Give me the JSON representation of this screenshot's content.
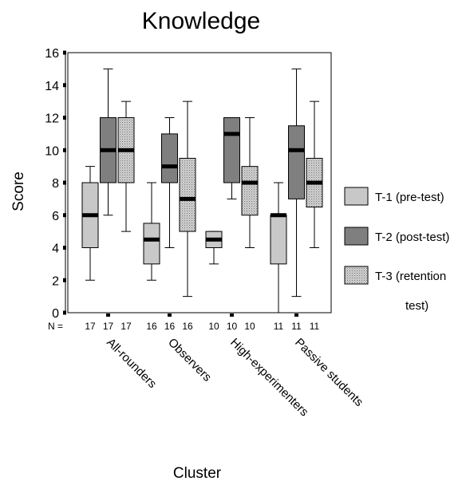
{
  "chart_data": {
    "type": "boxplot",
    "title": "Knowledge",
    "xlabel": "Cluster",
    "ylabel": "Score",
    "ylim": [
      0,
      16
    ],
    "yticks": [
      0,
      2,
      4,
      6,
      8,
      10,
      12,
      14,
      16
    ],
    "n_prefix": "N =",
    "categories": [
      "All-rounders",
      "Observers",
      "High-experimenters",
      "Passive students"
    ],
    "colors": {
      "T-1 (pre-test)": "#c8c8c8",
      "T-2 (post-test)": "#7f7f7f",
      "T-3 (retention test)": "#b4b4b4"
    },
    "series": [
      {
        "name": "T-1 (pre-test)",
        "legend_lines": [
          "T-1 (pre-test)"
        ],
        "boxes": [
          {
            "min": 2,
            "q1": 4,
            "median": 6,
            "q3": 8,
            "max": 9,
            "n": "17"
          },
          {
            "min": 2,
            "q1": 3,
            "median": 4.5,
            "q3": 5.5,
            "max": 8,
            "n": "16"
          },
          {
            "min": 3,
            "q1": 4,
            "median": 4.5,
            "q3": 5,
            "max": 5,
            "n": "10"
          },
          {
            "min": 0,
            "q1": 3,
            "median": 6,
            "q3": 6,
            "max": 8,
            "n": "11"
          }
        ]
      },
      {
        "name": "T-2 (post-test)",
        "legend_lines": [
          "T-2 (post-test)"
        ],
        "boxes": [
          {
            "min": 6,
            "q1": 8,
            "median": 10,
            "q3": 12,
            "max": 15,
            "n": "17"
          },
          {
            "min": 4,
            "q1": 8,
            "median": 9,
            "q3": 11,
            "max": 12,
            "n": "16"
          },
          {
            "min": 7,
            "q1": 8,
            "median": 11,
            "q3": 12,
            "max": 12,
            "n": "10"
          },
          {
            "min": 1,
            "q1": 7,
            "median": 10,
            "q3": 11.5,
            "max": 15,
            "n": "11"
          }
        ]
      },
      {
        "name": "T-3 (retention test)",
        "legend_lines": [
          "T-3 (retention",
          "test)"
        ],
        "boxes": [
          {
            "min": 5,
            "q1": 8,
            "median": 10,
            "q3": 12,
            "max": 13,
            "n": "17"
          },
          {
            "min": 1,
            "q1": 5,
            "median": 7,
            "q3": 9.5,
            "max": 13,
            "n": "16"
          },
          {
            "min": 4,
            "q1": 6,
            "median": 8,
            "q3": 9,
            "max": 12,
            "n": "10"
          },
          {
            "min": 4,
            "q1": 6.5,
            "median": 8,
            "q3": 9.5,
            "max": 13,
            "n": "11"
          }
        ]
      }
    ],
    "legend_position": "right",
    "grid": false
  }
}
